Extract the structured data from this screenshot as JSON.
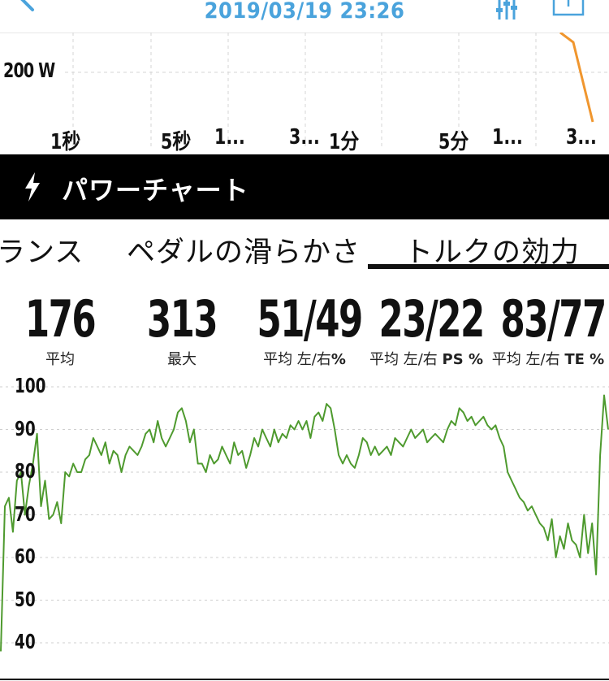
{
  "header": {
    "title": "2019/03/19 23:26",
    "accent_color": "#4aa3dc",
    "icons": [
      "back-arrow-icon",
      "filter-sliders-icon",
      "share-icon"
    ]
  },
  "top_chart": {
    "y_label": "200 W",
    "x_ticks": [
      "1秒",
      "5秒",
      "1...",
      "3...",
      "1分",
      "5分",
      "1...",
      "3..."
    ],
    "line_color": "#f0962e"
  },
  "section": {
    "title": "パワーチャート",
    "icon": "lightning-bolt-icon"
  },
  "tabs": [
    {
      "label": "ランス",
      "selected": false
    },
    {
      "label": "ペダルの滑らかさ",
      "selected": false
    },
    {
      "label": "トルクの効力",
      "selected": true
    }
  ],
  "stats": [
    {
      "value": "176",
      "label": "平均",
      "suffix": ""
    },
    {
      "value": "313",
      "label": "最大",
      "suffix": ""
    },
    {
      "value": "51/49",
      "label": "平均 左/右",
      "suffix": "%"
    },
    {
      "value": "23/22",
      "label": "平均 左/右",
      "suffix": "PS %"
    },
    {
      "value": "83/77",
      "label": "平均 左/右",
      "suffix": "TE %"
    }
  ],
  "chart_data": {
    "type": "line",
    "color": "#4e9a2e",
    "ylim": [
      36,
      100
    ],
    "yticks": [
      "100",
      "90",
      "80",
      "70",
      "60",
      "50",
      "40"
    ],
    "grid": true,
    "series": [
      {
        "values": [
          38,
          72,
          74,
          66,
          78,
          80,
          70,
          77,
          82,
          89,
          72,
          78,
          69,
          70,
          73,
          68,
          80,
          79,
          82,
          80,
          80,
          83,
          84,
          88,
          86,
          84,
          87,
          82,
          85,
          84,
          80,
          84,
          86,
          85,
          84,
          86,
          89,
          90,
          87,
          92,
          88,
          86,
          88,
          90,
          94,
          95,
          92,
          87,
          90,
          82,
          82,
          80,
          84,
          82,
          83,
          86,
          84,
          82,
          87,
          84,
          85,
          81,
          84,
          88,
          86,
          90,
          88,
          86,
          90,
          87,
          89,
          88,
          91,
          90,
          92,
          90,
          92,
          88,
          93,
          94,
          92,
          96,
          95,
          90,
          84,
          82,
          84,
          82,
          81,
          84,
          88,
          87,
          84,
          86,
          84,
          85,
          86,
          84,
          88,
          87,
          86,
          88,
          90,
          88,
          89,
          90,
          87,
          88,
          89,
          88,
          87,
          90,
          92,
          91,
          95,
          94,
          92,
          93,
          91,
          92,
          93,
          91,
          90,
          91,
          88,
          86,
          80,
          78,
          76,
          74,
          73,
          71,
          72,
          70,
          68,
          67,
          64,
          69,
          60,
          65,
          62,
          68,
          64,
          63,
          60,
          70,
          61,
          68,
          56,
          84,
          98,
          90
        ]
      }
    ]
  }
}
